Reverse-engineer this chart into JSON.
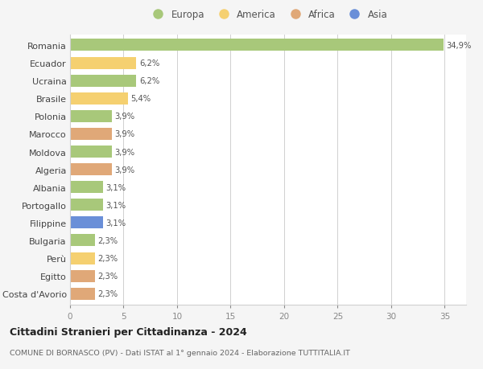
{
  "countries": [
    "Romania",
    "Ecuador",
    "Ucraina",
    "Brasile",
    "Polonia",
    "Marocco",
    "Moldova",
    "Algeria",
    "Albania",
    "Portogallo",
    "Filippine",
    "Bulgaria",
    "Perù",
    "Egitto",
    "Costa d'Avorio"
  ],
  "values": [
    34.9,
    6.2,
    6.2,
    5.4,
    3.9,
    3.9,
    3.9,
    3.9,
    3.1,
    3.1,
    3.1,
    2.3,
    2.3,
    2.3,
    2.3
  ],
  "labels": [
    "34,9%",
    "6,2%",
    "6,2%",
    "5,4%",
    "3,9%",
    "3,9%",
    "3,9%",
    "3,9%",
    "3,1%",
    "3,1%",
    "3,1%",
    "2,3%",
    "2,3%",
    "2,3%",
    "2,3%"
  ],
  "continents": [
    "Europa",
    "America",
    "Europa",
    "America",
    "Europa",
    "Africa",
    "Europa",
    "Africa",
    "Europa",
    "Europa",
    "Asia",
    "Europa",
    "America",
    "Africa",
    "Africa"
  ],
  "colors": {
    "Europa": "#a8c87a",
    "America": "#f5d070",
    "Africa": "#e0a878",
    "Asia": "#6a8fd8"
  },
  "legend_order": [
    "Europa",
    "America",
    "Africa",
    "Asia"
  ],
  "title1": "Cittadini Stranieri per Cittadinanza - 2024",
  "title2": "COMUNE DI BORNASCO (PV) - Dati ISTAT al 1° gennaio 2024 - Elaborazione TUTTITALIA.IT",
  "xlim": [
    0,
    37
  ],
  "xticks": [
    0,
    5,
    10,
    15,
    20,
    25,
    30,
    35
  ],
  "bg_color": "#f5f5f5",
  "plot_bg": "#ffffff",
  "grid_color": "#d0d0d0"
}
